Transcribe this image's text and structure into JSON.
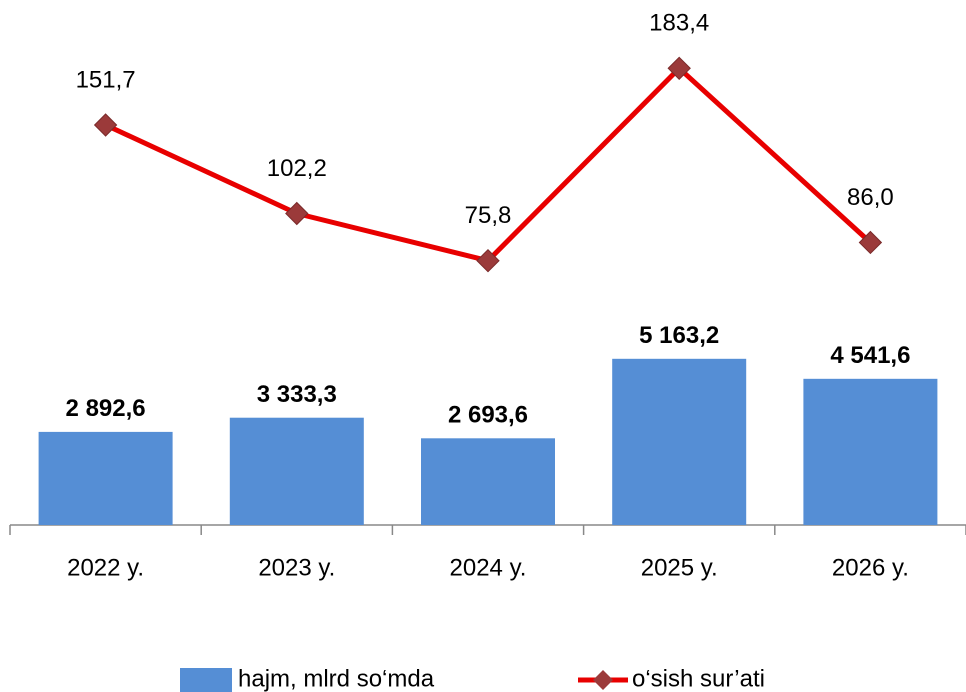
{
  "chart_data": {
    "type": "combo",
    "categories": [
      "2022 y.",
      "2023 y.",
      "2024 y.",
      "2025 y.",
      "2026 y."
    ],
    "series": [
      {
        "name": "hajm, mlrd so‘mda",
        "type": "bar",
        "color": "#558ed5",
        "values": [
          2892.6,
          3333.3,
          2693.6,
          5163.2,
          4541.6
        ],
        "value_labels": [
          "2 892,6",
          "3 333,3",
          "2 693,6",
          "5 163,2",
          "4 541,6"
        ]
      },
      {
        "name": "o‘sish sur’ati",
        "type": "line",
        "axis": "y2",
        "color": "#e80000",
        "marker_color": "#9b3a3a",
        "values": [
          151.7,
          102.2,
          75.8,
          183.4,
          86.0
        ],
        "value_labels": [
          "151,7",
          "102,2",
          "75,8",
          "183,4",
          "86,0"
        ]
      }
    ],
    "ylim": [
      0,
      16000
    ],
    "y2lim": [
      -72,
      216
    ],
    "legend": "bottom"
  }
}
